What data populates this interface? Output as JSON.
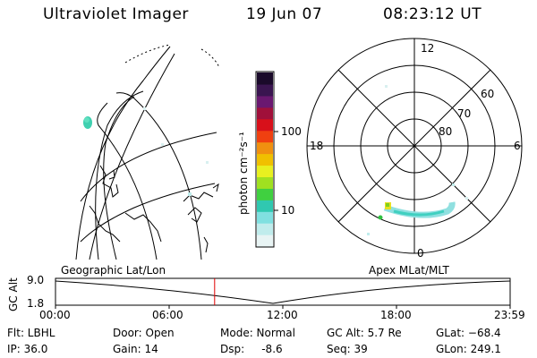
{
  "header": {
    "instrument": "Ultraviolet Imager",
    "date": "19 Jun 07",
    "time": "08:23:12 UT"
  },
  "colorbar": {
    "label": "photon cm⁻²s⁻¹",
    "ticks": [
      "100",
      "10"
    ],
    "colors": [
      "#1a0a2a",
      "#3a1550",
      "#6a1870",
      "#a0103a",
      "#d8101a",
      "#f04010",
      "#f09010",
      "#f0c000",
      "#e8f020",
      "#a0e020",
      "#40d040",
      "#30c8b0",
      "#80e0e0",
      "#c0ecec",
      "#e8f4f4"
    ]
  },
  "left_panel": {
    "label": "Geographic Lat/Lon"
  },
  "right_panel": {
    "label": "Apex MLat/MLT",
    "mlt_labels": {
      "top": "12",
      "left": "18",
      "right": "6",
      "bottom": "0"
    },
    "lat_labels": [
      "60",
      "70",
      "80"
    ]
  },
  "altitude_plot": {
    "ylabel": "GC Alt",
    "ytick_top": "9.0",
    "ytick_bottom": "1.8",
    "xticks": [
      "00:00",
      "06:00",
      "12:00",
      "18:00",
      "23:59"
    ],
    "current_time_fraction": 0.35
  },
  "info": {
    "flt": "Flt: LBHL",
    "ip": "IP: 36.0",
    "door": "Door: Open",
    "gain": "Gain: 14",
    "mode": "Mode: Normal",
    "dsp": "Dsp:     -8.6",
    "gcalt": "GC Alt: 5.7 Re",
    "seq": "Seq: 39",
    "glat": "GLat: −68.4",
    "glon": "GLon: 249.1"
  }
}
